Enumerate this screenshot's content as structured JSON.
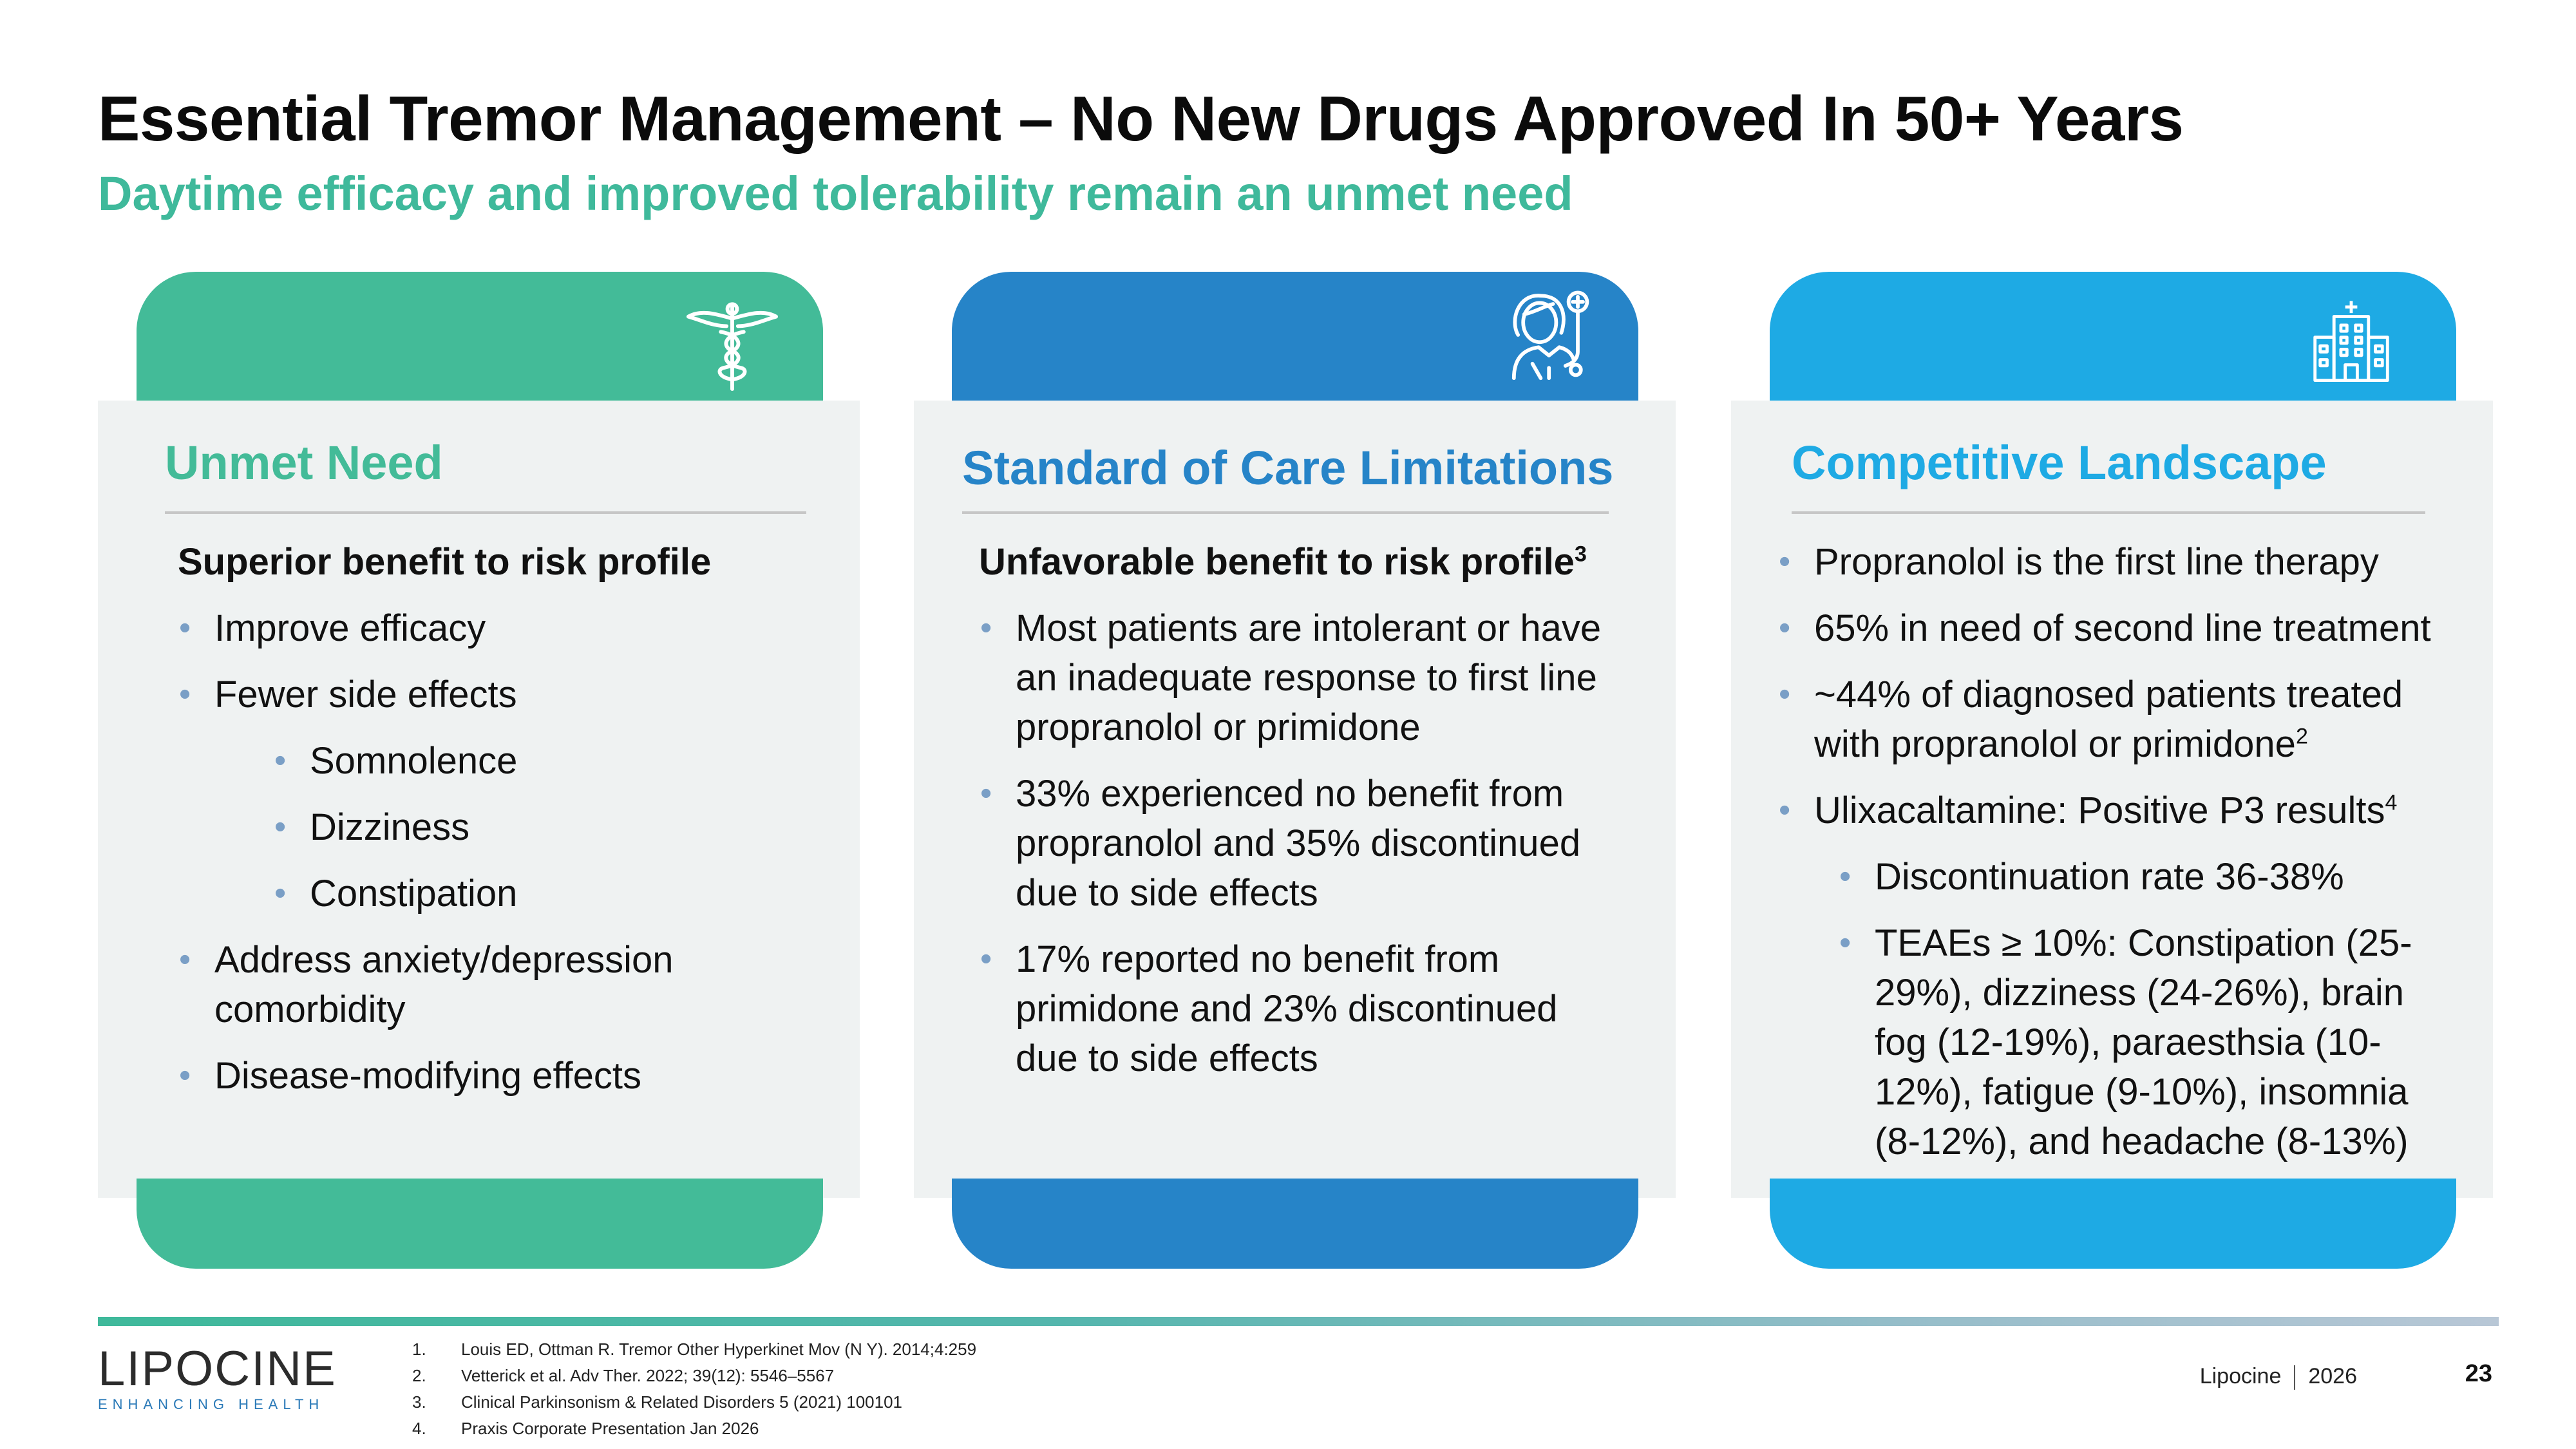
{
  "title": "Essential Tremor Management – No New Drugs Approved In 50+ Years",
  "subtitle": "Daytime efficacy and improved tolerability remain an unmet need",
  "colors": {
    "green": "#43bb98",
    "blue": "#2684c8",
    "cyan": "#1eaae4",
    "panel": "#eff2f2"
  },
  "cards": [
    {
      "heading": "Unmet Need",
      "icon": "caduceus-icon",
      "lead": "Superior benefit to risk profile",
      "bullets": [
        "Improve efficacy",
        "Fewer side effects",
        "Somnolence",
        "Dizziness",
        "Constipation",
        "Address anxiety/depression comorbidity",
        "Disease-modifying effects"
      ]
    },
    {
      "heading": "Standard of Care Limitations",
      "icon": "patient-icon",
      "lead": "Unfavorable benefit to risk profile",
      "lead_sup": "3",
      "bullets": [
        "Most patients are intolerant or have an inadequate response to first line propranolol or primidone",
        "33% experienced no benefit from propranolol and 35% discontinued due to side effects",
        "17% reported no benefit from primidone and 23% discontinued due to side effects"
      ]
    },
    {
      "heading": "Competitive Landscape",
      "icon": "hospital-icon",
      "bullets": [
        "Propranolol is the first line therapy",
        "65% in need of second line treatment",
        "~44% of diagnosed patients treated with propranolol or primidone",
        "Ulixacaltamine: Positive P3 results",
        "Discontinuation rate 36-38%",
        "TEAEs ≥ 10%: Constipation (25-29%), dizziness (24-26%), brain fog (12-19%), paraesthsia (10-12%), fatigue (9-10%), insomnia (8-12%), and headache (8-13%)"
      ],
      "sup_2": "2",
      "sup_3": "4"
    }
  ],
  "references": [
    {
      "num": "1.",
      "text": "Louis ED, Ottman R. Tremor Other Hyperkinet Mov (N Y). 2014;4:259"
    },
    {
      "num": "2.",
      "text": "Vetterick et al. Adv Ther. 2022; 39(12): 5546–5567"
    },
    {
      "num": "3.",
      "text": "Clinical Parkinsonism & Related Disorders 5 (2021) 100101"
    },
    {
      "num": "4.",
      "text": "Praxis Corporate Presentation Jan 2026"
    }
  ],
  "footer": {
    "logo": "LIPOCINE",
    "logo_tagline": "ENHANCING HEALTH",
    "company": "Lipocine",
    "year": "2026",
    "page": "23"
  }
}
